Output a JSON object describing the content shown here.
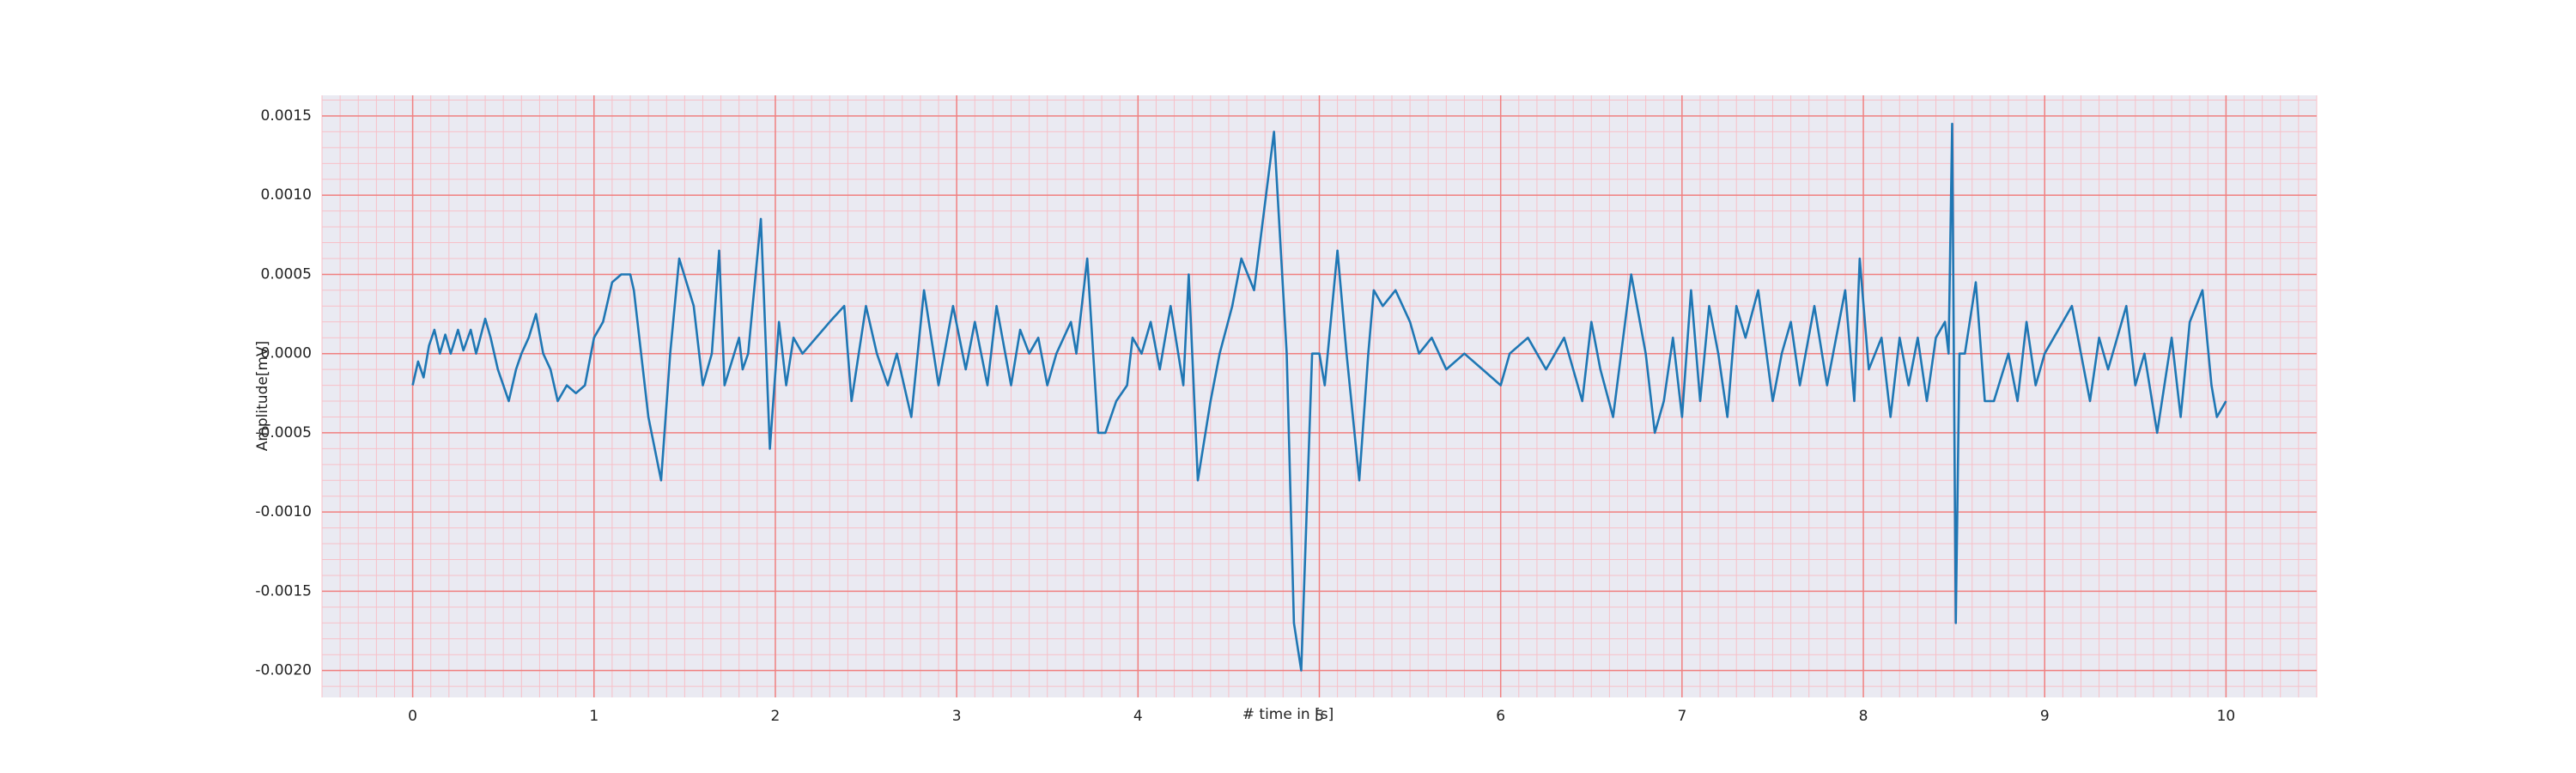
{
  "chart_data": {
    "type": "line",
    "xlabel": "# time in [s]",
    "ylabel": "Amplitude[mV]",
    "color": "#1f77b4",
    "background": "#eaeaf2",
    "grid": true,
    "grid_color": "#f08080",
    "minor_grid": true,
    "minor_grid_color": "#f7c0c8",
    "minor_x_divisions": 10,
    "minor_y_divisions": 5,
    "xlim": [
      -0.5,
      10.5
    ],
    "xticks": [
      0,
      1,
      2,
      3,
      4,
      5,
      6,
      7,
      8,
      9,
      10
    ],
    "ylim": [
      -0.00217,
      0.00163
    ],
    "yticks": [
      {
        "value": 0.0015,
        "label": "0.0015"
      },
      {
        "value": 0.001,
        "label": "0.0010"
      },
      {
        "value": 0.0005,
        "label": "0.0005"
      },
      {
        "value": 0,
        "label": "0.0000"
      },
      {
        "value": -0.0005,
        "label": "-0.0005"
      },
      {
        "value": -0.001,
        "label": "-0.0010"
      },
      {
        "value": -0.0015,
        "label": "-0.0015"
      },
      {
        "value": -0.002,
        "label": "-0.0020"
      }
    ],
    "x": [
      0.0,
      0.03,
      0.06,
      0.09,
      0.12,
      0.15,
      0.18,
      0.21,
      0.25,
      0.28,
      0.32,
      0.35,
      0.4,
      0.43,
      0.47,
      0.5,
      0.53,
      0.57,
      0.6,
      0.64,
      0.68,
      0.72,
      0.76,
      0.8,
      0.85,
      0.9,
      0.95,
      1.0,
      1.05,
      1.1,
      1.15,
      1.2,
      1.22,
      1.3,
      1.37,
      1.42,
      1.47,
      1.55,
      1.6,
      1.65,
      1.69,
      1.72,
      1.8,
      1.82,
      1.85,
      1.92,
      1.97,
      2.02,
      2.06,
      2.1,
      2.15,
      2.3,
      2.38,
      2.42,
      2.5,
      2.56,
      2.62,
      2.67,
      2.75,
      2.82,
      2.9,
      2.98,
      3.05,
      3.1,
      3.17,
      3.22,
      3.3,
      3.35,
      3.4,
      3.45,
      3.5,
      3.55,
      3.63,
      3.66,
      3.72,
      3.78,
      3.82,
      3.88,
      3.94,
      3.97,
      4.02,
      4.07,
      4.12,
      4.18,
      4.25,
      4.28,
      4.33,
      4.4,
      4.45,
      4.52,
      4.57,
      4.64,
      4.75,
      4.82,
      4.86,
      4.9,
      4.96,
      5.0,
      5.03,
      5.1,
      5.15,
      5.22,
      5.27,
      5.3,
      5.35,
      5.42,
      5.5,
      5.55,
      5.62,
      5.7,
      5.8,
      5.9,
      6.0,
      6.05,
      6.15,
      6.25,
      6.35,
      6.45,
      6.5,
      6.55,
      6.62,
      6.72,
      6.8,
      6.85,
      6.9,
      6.95,
      7.0,
      7.05,
      7.1,
      7.15,
      7.2,
      7.25,
      7.3,
      7.35,
      7.42,
      7.5,
      7.55,
      7.6,
      7.65,
      7.73,
      7.8,
      7.9,
      7.95,
      7.98,
      8.03,
      8.1,
      8.15,
      8.2,
      8.25,
      8.3,
      8.35,
      8.4,
      8.45,
      8.47,
      8.49,
      8.51,
      8.53,
      8.56,
      8.62,
      8.67,
      8.72,
      8.8,
      8.85,
      8.9,
      8.95,
      9.0,
      9.05,
      9.15,
      9.2,
      9.25,
      9.3,
      9.35,
      9.45,
      9.5,
      9.55,
      9.62,
      9.7,
      9.75,
      9.8,
      9.87,
      9.92,
      9.95,
      10.0
    ],
    "values": [
      -0.0002,
      -5e-05,
      -0.00015,
      5e-05,
      0.00015,
      0.0,
      0.00012,
      0.0,
      0.00015,
      2e-05,
      0.00015,
      0.0,
      0.00022,
      0.0001,
      -0.0001,
      -0.0002,
      -0.0003,
      -0.0001,
      0.0,
      0.0001,
      0.00025,
      0.0,
      -0.0001,
      -0.0003,
      -0.0002,
      -0.00025,
      -0.0002,
      0.0001,
      0.0002,
      0.00045,
      0.0005,
      0.0005,
      0.0004,
      -0.0004,
      -0.0008,
      0.0,
      0.0006,
      0.0003,
      -0.0002,
      0.0,
      0.00065,
      -0.0002,
      0.0001,
      -0.0001,
      0.0,
      0.00085,
      -0.0006,
      0.0002,
      -0.0002,
      0.0001,
      0.0,
      0.0002,
      0.0003,
      -0.0003,
      0.0003,
      0.0,
      -0.0002,
      0.0,
      -0.0004,
      0.0004,
      -0.0002,
      0.0003,
      -0.0001,
      0.0002,
      -0.0002,
      0.0003,
      -0.0002,
      0.00015,
      0.0,
      0.0001,
      -0.0002,
      0.0,
      0.0002,
      0.0,
      0.0006,
      -0.0005,
      -0.0005,
      -0.0003,
      -0.0002,
      0.0001,
      0.0,
      0.0002,
      -0.0001,
      0.0003,
      -0.0002,
      0.0005,
      -0.0008,
      -0.0003,
      0.0,
      0.0003,
      0.0006,
      0.0004,
      0.0014,
      0.0,
      -0.0017,
      -0.002,
      0.0,
      0.0,
      -0.0002,
      0.00065,
      0.0,
      -0.0008,
      0.0,
      0.0004,
      0.0003,
      0.0004,
      0.0002,
      0.0,
      0.0001,
      -0.0001,
      0.0,
      -0.0001,
      -0.0002,
      0.0,
      0.0001,
      -0.0001,
      0.0001,
      -0.0003,
      0.0002,
      -0.0001,
      -0.0004,
      0.0005,
      0.0,
      -0.0005,
      -0.0003,
      0.0001,
      -0.0004,
      0.0004,
      -0.0003,
      0.0003,
      0.0,
      -0.0004,
      0.0003,
      0.0001,
      0.0004,
      -0.0003,
      0.0,
      0.0002,
      -0.0002,
      0.0003,
      -0.0002,
      0.0004,
      -0.0003,
      0.0006,
      -0.0001,
      0.0001,
      -0.0004,
      0.0001,
      -0.0002,
      0.0001,
      -0.0003,
      0.0001,
      0.0002,
      0.0,
      0.00145,
      -0.0017,
      0.0,
      0.0,
      0.00045,
      -0.0003,
      -0.0003,
      0.0,
      -0.0003,
      0.0002,
      -0.0002,
      0.0,
      0.0001,
      0.0003,
      0.0,
      -0.0003,
      0.0001,
      -0.0001,
      0.0003,
      -0.0002,
      0.0,
      -0.0005,
      0.0001,
      -0.0004,
      0.0002,
      0.0004,
      -0.0002,
      -0.0004,
      -0.0003
    ]
  }
}
